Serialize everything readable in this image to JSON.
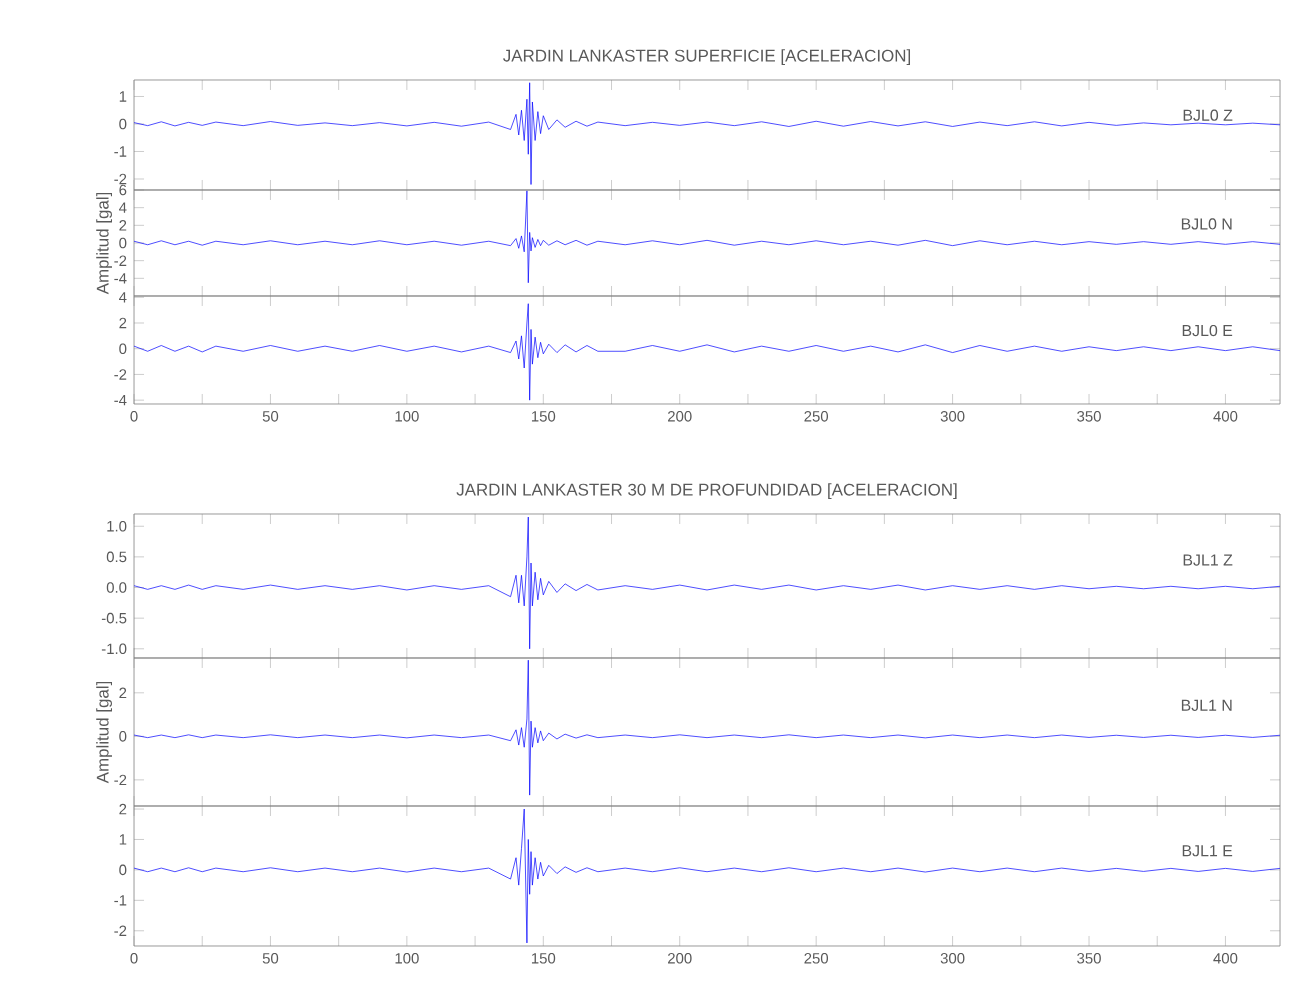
{
  "chart_data": [
    {
      "type": "line",
      "title": "JARDIN LANKASTER SUPERFICIE [ACELERACION]",
      "tick_labels": "y",
      "xlim": [
        0,
        420
      ],
      "ylim": [
        -2.4,
        1.6
      ],
      "yticks": [
        -2,
        -1,
        0,
        1
      ],
      "xticks": [
        0,
        {
          "value": 25,
          "label": null
        },
        50,
        {
          "value": 75,
          "label": null
        },
        100,
        {
          "value": 125,
          "label": null
        },
        150,
        {
          "value": 175,
          "label": null
        },
        200,
        {
          "value": 225,
          "label": null
        },
        250,
        {
          "value": 275,
          "label": null
        },
        300,
        {
          "value": 325,
          "label": null
        },
        350,
        {
          "value": 375,
          "label": null
        },
        400
      ],
      "x": [
        0,
        5,
        10,
        15,
        20,
        25,
        30,
        40,
        50,
        60,
        70,
        80,
        90,
        100,
        110,
        120,
        130,
        138,
        140,
        141,
        142,
        143,
        144,
        144.5,
        145,
        145.5,
        146,
        147,
        148,
        149,
        150,
        152,
        155,
        158,
        162,
        166,
        170,
        180,
        190,
        200,
        210,
        220,
        230,
        240,
        250,
        260,
        270,
        280,
        290,
        300,
        310,
        320,
        330,
        340,
        350,
        360,
        370,
        380,
        390,
        400,
        410,
        420
      ],
      "series": [
        {
          "name": "BJL0 Z",
          "color": "#0000ff",
          "values": [
            0.05,
            -0.06,
            0.08,
            -0.07,
            0.06,
            -0.05,
            0.07,
            -0.06,
            0.09,
            -0.05,
            0.04,
            -0.06,
            0.05,
            -0.07,
            0.06,
            -0.08,
            0.07,
            -0.2,
            0.35,
            -0.4,
            0.5,
            -0.6,
            0.9,
            -1.1,
            1.5,
            -2.2,
            0.8,
            -0.6,
            0.45,
            -0.35,
            0.3,
            -0.2,
            0.15,
            -0.12,
            0.1,
            -0.08,
            0.07,
            -0.06,
            0.06,
            -0.05,
            0.07,
            -0.06,
            0.08,
            -0.09,
            0.1,
            -0.08,
            0.09,
            -0.07,
            0.08,
            -0.09,
            0.07,
            -0.06,
            0.08,
            -0.07,
            0.06,
            -0.05,
            0.04,
            -0.03,
            0.03,
            -0.03,
            0.03,
            -0.03
          ]
        }
      ]
    },
    {
      "type": "line",
      "ylabel": "Amplitud [gal]",
      "tick_labels": "y",
      "xlim": [
        0,
        420
      ],
      "ylim": [
        -6,
        6
      ],
      "yticks": [
        -4,
        -2,
        0,
        2,
        4,
        6
      ],
      "xticks": [
        0,
        {
          "value": 25,
          "label": null
        },
        50,
        {
          "value": 75,
          "label": null
        },
        100,
        {
          "value": 125,
          "label": null
        },
        150,
        {
          "value": 175,
          "label": null
        },
        200,
        {
          "value": 225,
          "label": null
        },
        250,
        {
          "value": 275,
          "label": null
        },
        300,
        {
          "value": 325,
          "label": null
        },
        350,
        {
          "value": 375,
          "label": null
        },
        400
      ],
      "x": [
        0,
        5,
        10,
        15,
        20,
        25,
        30,
        40,
        50,
        60,
        70,
        80,
        90,
        100,
        110,
        120,
        130,
        138,
        140,
        141,
        142,
        143,
        144,
        144.5,
        145,
        145.5,
        146,
        147,
        148,
        149,
        150,
        152,
        155,
        158,
        162,
        166,
        170,
        180,
        190,
        200,
        210,
        220,
        230,
        240,
        250,
        260,
        270,
        280,
        290,
        300,
        310,
        320,
        330,
        340,
        350,
        360,
        370,
        380,
        390,
        400,
        410,
        420
      ],
      "series": [
        {
          "name": "BJL0 N",
          "color": "#0000ff",
          "values": [
            0.2,
            -0.2,
            0.25,
            -0.2,
            0.2,
            -0.25,
            0.2,
            -0.2,
            0.25,
            -0.2,
            0.2,
            -0.2,
            0.25,
            -0.2,
            0.2,
            -0.25,
            0.2,
            -0.3,
            0.5,
            -0.6,
            0.8,
            -1.0,
            5.9,
            -4.5,
            1.2,
            -0.9,
            0.6,
            -0.5,
            0.4,
            -0.3,
            0.3,
            -0.25,
            0.25,
            -0.2,
            0.3,
            -0.25,
            0.2,
            -0.2,
            0.25,
            -0.2,
            0.3,
            -0.25,
            0.2,
            -0.2,
            0.25,
            -0.2,
            0.2,
            -0.25,
            0.3,
            -0.3,
            0.25,
            -0.2,
            0.2,
            -0.2,
            0.15,
            -0.15,
            0.15,
            -0.15,
            0.15,
            -0.15,
            0.15,
            -0.15
          ]
        }
      ]
    },
    {
      "type": "line",
      "xlim": [
        0,
        420
      ],
      "ylim": [
        -4.3,
        4.1
      ],
      "yticks": [
        -4,
        -2,
        0,
        2,
        4
      ],
      "xticks": [
        0,
        {
          "value": 25,
          "label": null
        },
        50,
        {
          "value": 75,
          "label": null
        },
        100,
        {
          "value": 125,
          "label": null
        },
        150,
        {
          "value": 175,
          "label": null
        },
        200,
        {
          "value": 225,
          "label": null
        },
        250,
        {
          "value": 275,
          "label": null
        },
        300,
        {
          "value": 325,
          "label": null
        },
        350,
        {
          "value": 375,
          "label": null
        },
        400
      ],
      "x": [
        0,
        5,
        10,
        15,
        20,
        25,
        30,
        40,
        50,
        60,
        70,
        80,
        90,
        100,
        110,
        120,
        130,
        138,
        140,
        141,
        142,
        143,
        144,
        144.5,
        145,
        145.5,
        146,
        147,
        148,
        149,
        150,
        152,
        155,
        158,
        162,
        166,
        170,
        180,
        190,
        200,
        210,
        220,
        230,
        240,
        250,
        260,
        270,
        280,
        290,
        300,
        310,
        320,
        330,
        340,
        350,
        360,
        370,
        380,
        390,
        400,
        410,
        420
      ],
      "series": [
        {
          "name": "BJL0 E",
          "color": "#0000ff",
          "values": [
            0.2,
            -0.2,
            0.25,
            -0.2,
            0.2,
            -0.25,
            0.2,
            -0.2,
            0.25,
            -0.2,
            0.2,
            -0.2,
            0.25,
            -0.2,
            0.2,
            -0.25,
            0.2,
            -0.3,
            0.6,
            -0.8,
            1.0,
            -1.5,
            2.0,
            3.5,
            -4.0,
            1.5,
            -1.2,
            0.9,
            -0.7,
            0.5,
            -0.4,
            0.35,
            -0.3,
            0.3,
            -0.25,
            0.25,
            -0.2,
            -0.2,
            0.25,
            -0.2,
            0.3,
            -0.25,
            0.2,
            -0.2,
            0.25,
            -0.2,
            0.2,
            -0.25,
            0.3,
            -0.3,
            0.25,
            -0.2,
            0.2,
            -0.2,
            0.15,
            -0.15,
            0.15,
            -0.15,
            0.15,
            -0.15,
            0.15,
            -0.15
          ]
        }
      ]
    },
    {
      "type": "line",
      "title": "JARDIN LANKASTER 30 M DE PROFUNDIDAD [ACELERACION]",
      "tick_labels": "y",
      "xlim": [
        0,
        420
      ],
      "ylim": [
        -1.15,
        1.2
      ],
      "yticks": [
        {
          "value": -1,
          "label": "-1.0"
        },
        -0.5,
        {
          "value": 0,
          "label": "0.0"
        },
        0.5,
        {
          "value": 1,
          "label": "1.0"
        }
      ],
      "xticks": [
        0,
        {
          "value": 25,
          "label": null
        },
        50,
        {
          "value": 75,
          "label": null
        },
        100,
        {
          "value": 125,
          "label": null
        },
        150,
        {
          "value": 175,
          "label": null
        },
        200,
        {
          "value": 225,
          "label": null
        },
        250,
        {
          "value": 275,
          "label": null
        },
        300,
        {
          "value": 325,
          "label": null
        },
        350,
        {
          "value": 375,
          "label": null
        },
        400
      ],
      "x": [
        0,
        5,
        10,
        15,
        20,
        25,
        30,
        40,
        50,
        60,
        70,
        80,
        90,
        100,
        110,
        120,
        130,
        138,
        140,
        141,
        142,
        143,
        144,
        144.5,
        145,
        145.5,
        146,
        147,
        148,
        149,
        150,
        152,
        155,
        158,
        162,
        166,
        170,
        180,
        190,
        200,
        210,
        220,
        230,
        240,
        250,
        260,
        270,
        280,
        290,
        300,
        310,
        320,
        330,
        340,
        350,
        360,
        370,
        380,
        390,
        400,
        410,
        420
      ],
      "series": [
        {
          "name": "BJL1 Z",
          "color": "#0000ff",
          "values": [
            0.03,
            -0.03,
            0.03,
            -0.03,
            0.04,
            -0.03,
            0.03,
            -0.03,
            0.04,
            -0.03,
            0.03,
            -0.03,
            0.03,
            -0.04,
            0.03,
            -0.03,
            0.03,
            -0.15,
            0.2,
            -0.25,
            0.2,
            -0.3,
            0.5,
            1.15,
            -1.0,
            0.4,
            -0.3,
            0.25,
            -0.2,
            0.15,
            -0.12,
            0.1,
            -0.08,
            0.06,
            -0.05,
            0.05,
            -0.04,
            0.03,
            -0.03,
            0.04,
            -0.04,
            0.04,
            -0.03,
            0.04,
            -0.04,
            0.03,
            -0.03,
            0.04,
            -0.04,
            0.03,
            -0.03,
            0.03,
            -0.03,
            0.03,
            -0.02,
            0.02,
            -0.02,
            0.02,
            -0.02,
            0.02,
            -0.02,
            0.02
          ]
        }
      ]
    },
    {
      "type": "line",
      "ylabel": "Amplitud [gal]",
      "tick_labels": "y",
      "xlim": [
        0,
        420
      ],
      "ylim": [
        -3.2,
        3.6
      ],
      "yticks": [
        -2,
        0,
        2
      ],
      "xticks": [
        0,
        {
          "value": 25,
          "label": null
        },
        50,
        {
          "value": 75,
          "label": null
        },
        100,
        {
          "value": 125,
          "label": null
        },
        150,
        {
          "value": 175,
          "label": null
        },
        200,
        {
          "value": 225,
          "label": null
        },
        250,
        {
          "value": 275,
          "label": null
        },
        300,
        {
          "value": 325,
          "label": null
        },
        350,
        {
          "value": 375,
          "label": null
        },
        400
      ],
      "x": [
        0,
        5,
        10,
        15,
        20,
        25,
        30,
        40,
        50,
        60,
        70,
        80,
        90,
        100,
        110,
        120,
        130,
        138,
        140,
        141,
        142,
        143,
        144,
        144.5,
        145,
        145.5,
        146,
        147,
        148,
        149,
        150,
        152,
        155,
        158,
        162,
        166,
        170,
        180,
        190,
        200,
        210,
        220,
        230,
        240,
        250,
        260,
        270,
        280,
        290,
        300,
        310,
        320,
        330,
        340,
        350,
        360,
        370,
        380,
        390,
        400,
        410,
        420
      ],
      "series": [
        {
          "name": "BJL1 N",
          "color": "#0000ff",
          "values": [
            0.06,
            -0.06,
            0.06,
            -0.06,
            0.07,
            -0.06,
            0.06,
            -0.06,
            0.07,
            -0.06,
            0.06,
            -0.06,
            0.06,
            -0.07,
            0.06,
            -0.06,
            0.06,
            -0.2,
            0.3,
            -0.4,
            0.4,
            -0.5,
            0.8,
            3.5,
            -2.7,
            0.7,
            -0.5,
            0.4,
            -0.3,
            0.25,
            -0.2,
            0.15,
            -0.12,
            0.1,
            -0.08,
            0.07,
            -0.06,
            0.06,
            -0.06,
            0.07,
            -0.06,
            0.06,
            -0.06,
            0.07,
            -0.06,
            0.06,
            -0.06,
            0.06,
            -0.07,
            0.06,
            -0.06,
            0.06,
            -0.06,
            0.06,
            -0.05,
            0.05,
            -0.05,
            0.05,
            -0.05,
            0.05,
            -0.05,
            0.05
          ]
        }
      ]
    },
    {
      "type": "line",
      "xlim": [
        0,
        420
      ],
      "ylim": [
        -2.5,
        2.1
      ],
      "yticks": [
        -2,
        -1,
        0,
        1,
        2
      ],
      "xticks": [
        0,
        {
          "value": 25,
          "label": null
        },
        50,
        {
          "value": 75,
          "label": null
        },
        100,
        {
          "value": 125,
          "label": null
        },
        150,
        {
          "value": 175,
          "label": null
        },
        200,
        {
          "value": 225,
          "label": null
        },
        250,
        {
          "value": 275,
          "label": null
        },
        300,
        {
          "value": 325,
          "label": null
        },
        350,
        {
          "value": 375,
          "label": null
        },
        400
      ],
      "x": [
        0,
        5,
        10,
        15,
        20,
        25,
        30,
        40,
        50,
        60,
        70,
        80,
        90,
        100,
        110,
        120,
        130,
        138,
        140,
        141,
        142,
        143,
        144,
        144.5,
        145,
        145.5,
        146,
        147,
        148,
        149,
        150,
        152,
        155,
        158,
        162,
        166,
        170,
        180,
        190,
        200,
        210,
        220,
        230,
        240,
        250,
        260,
        270,
        280,
        290,
        300,
        310,
        320,
        330,
        340,
        350,
        360,
        370,
        380,
        390,
        400,
        410,
        420
      ],
      "series": [
        {
          "name": "BJL1 E",
          "color": "#0000ff",
          "values": [
            0.06,
            -0.06,
            0.06,
            -0.06,
            0.07,
            -0.06,
            0.06,
            -0.06,
            0.07,
            -0.06,
            0.06,
            -0.06,
            0.06,
            -0.07,
            0.06,
            -0.06,
            0.06,
            -0.3,
            0.4,
            -0.5,
            0.7,
            2.0,
            -2.4,
            1.0,
            -0.8,
            0.6,
            -0.5,
            0.4,
            -0.3,
            0.25,
            -0.2,
            0.15,
            -0.12,
            0.1,
            -0.08,
            0.07,
            -0.06,
            0.06,
            -0.06,
            0.07,
            -0.06,
            0.06,
            -0.06,
            0.07,
            -0.06,
            0.06,
            -0.06,
            0.06,
            -0.07,
            0.06,
            -0.06,
            0.06,
            -0.06,
            0.06,
            -0.05,
            0.05,
            -0.05,
            0.05,
            -0.05,
            0.05,
            -0.05,
            0.05
          ]
        }
      ]
    }
  ]
}
